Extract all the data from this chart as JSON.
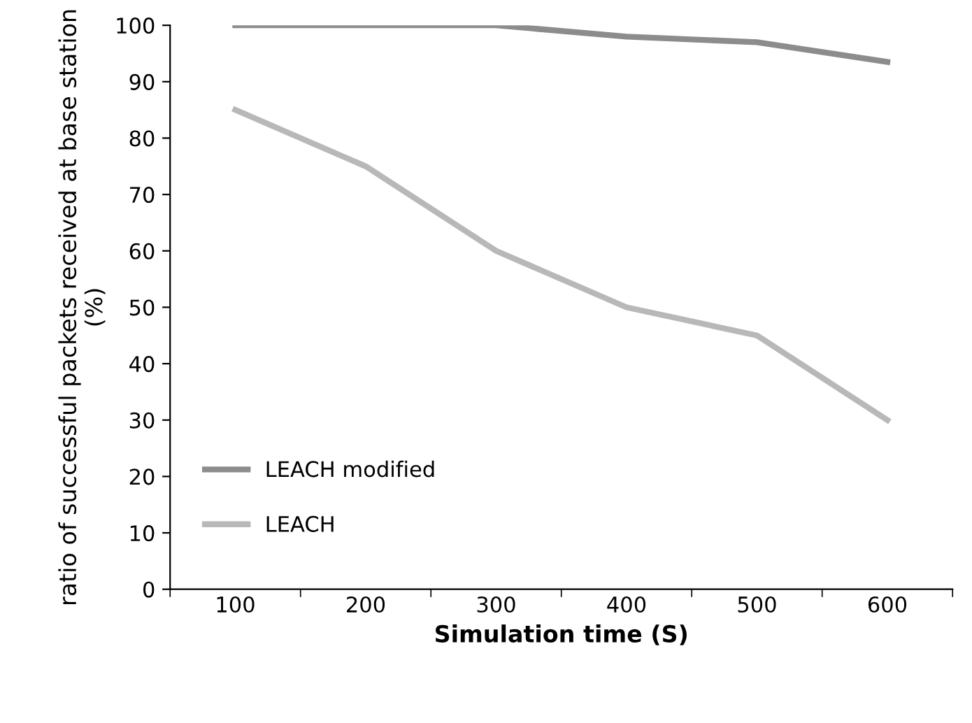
{
  "chart_data": {
    "type": "line",
    "xlabel": "Simulation time (S)",
    "ylabel": "ratio of successful packets received at base station (%)",
    "categories": [
      "100",
      "200",
      "300",
      "400",
      "500",
      "600"
    ],
    "series": [
      {
        "name": "LEACH modified",
        "color": "#8c8c8c",
        "values": [
          100,
          100,
          100,
          98,
          97,
          93.5
        ]
      },
      {
        "name": "LEACH",
        "color": "#b8b8b8",
        "values": [
          85,
          75,
          60,
          50,
          45,
          30
        ]
      }
    ],
    "ylim": [
      0,
      100
    ],
    "yticks": [
      0,
      10,
      20,
      30,
      40,
      50,
      60,
      70,
      80,
      90,
      100
    ],
    "grid": false,
    "legend": "bottom left",
    "marker": "none",
    "line_style": "solid"
  }
}
